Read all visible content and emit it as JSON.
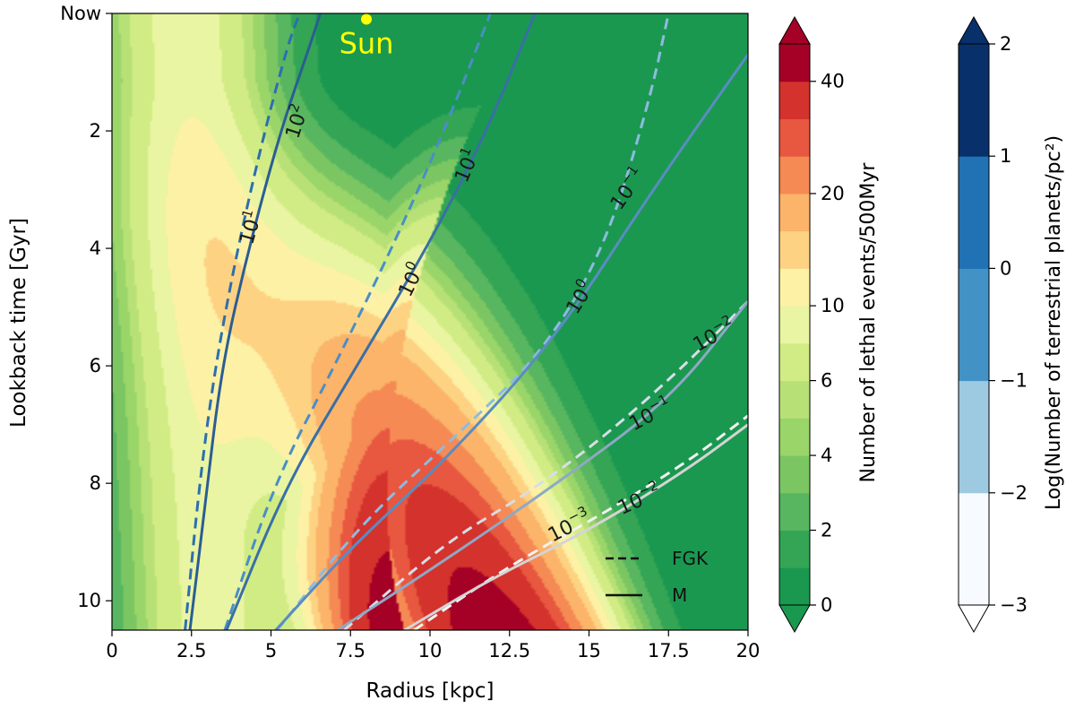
{
  "chart_data": {
    "type": "contour",
    "xlabel": "Radius [kpc]",
    "ylabel": "Lookback time [Gyr]",
    "xlim": [
      0,
      20
    ],
    "ylim": [
      10.5,
      0
    ],
    "x_ticks": [
      {
        "value": 0,
        "label": "0"
      },
      {
        "value": 2.5,
        "label": "2.5"
      },
      {
        "value": 5,
        "label": "5"
      },
      {
        "value": 7.5,
        "label": "7.5"
      },
      {
        "value": 10,
        "label": "10"
      },
      {
        "value": 12.5,
        "label": "12.5"
      },
      {
        "value": 15,
        "label": "15"
      },
      {
        "value": 17.5,
        "label": "17.5"
      },
      {
        "value": 20,
        "label": "20"
      }
    ],
    "y_ticks": [
      {
        "value": 0,
        "label": "Now"
      },
      {
        "value": 2,
        "label": "2"
      },
      {
        "value": 4,
        "label": "4"
      },
      {
        "value": 6,
        "label": "6"
      },
      {
        "value": 8,
        "label": "8"
      },
      {
        "value": 10,
        "label": "10"
      }
    ],
    "sun": {
      "label": "Sun",
      "radius": 8.0,
      "time": 0.1,
      "color": "#ffff00"
    },
    "lethal_colorbar": {
      "label": "Number of lethal events/500Myr",
      "levels": [
        0,
        1,
        2,
        3,
        4,
        5,
        6,
        8,
        10,
        12.5,
        15,
        20,
        25,
        30,
        40
      ],
      "colors": [
        "#1a9850",
        "#33a554",
        "#57b65f",
        "#7bc663",
        "#9ad56a",
        "#b7e176",
        "#d1ec84",
        "#e9f5a2",
        "#fdf1a6",
        "#fdd383",
        "#fbb469",
        "#f58a54",
        "#e8573f",
        "#d4322c",
        "#a50026"
      ],
      "over_color": "#a50026",
      "under_color": "#1a9850",
      "ticks": [
        {
          "value": 0,
          "label": "0"
        },
        {
          "value": 2,
          "label": "2"
        },
        {
          "value": 4,
          "label": "4"
        },
        {
          "value": 6,
          "label": "6"
        },
        {
          "value": 10,
          "label": "10"
        },
        {
          "value": 20,
          "label": "20"
        },
        {
          "value": 40,
          "label": "40"
        }
      ]
    },
    "planet_colorbar": {
      "label": "Log(Number of terrestrial planets/pc²)",
      "levels": [
        -3,
        -2,
        -1,
        0,
        1,
        2
      ],
      "colors": [
        "#f7fbff",
        "#9ecae1",
        "#4292c6",
        "#2171b5",
        "#08306b"
      ],
      "over_color": "#08306b",
      "under_color": "#ffffff",
      "ticks": [
        {
          "value": -3,
          "label": "−3"
        },
        {
          "value": -2,
          "label": "−2"
        },
        {
          "value": -1,
          "label": "−1"
        },
        {
          "value": 0,
          "label": "0"
        },
        {
          "value": 1,
          "label": "1"
        },
        {
          "value": 2,
          "label": "2"
        }
      ]
    },
    "legend": {
      "position": "lower-right",
      "entries": [
        {
          "label": "FGK",
          "style": "dashed"
        },
        {
          "label": "M",
          "style": "solid"
        }
      ]
    },
    "planet_contours": [
      {
        "name": "fgk-10^2",
        "style": "dashed",
        "color": "#2c6fae",
        "points": [
          [
            2.3,
            10.5
          ],
          [
            2.75,
            8.0
          ],
          [
            3.25,
            6.0
          ],
          [
            3.95,
            4.0
          ],
          [
            4.8,
            2.0
          ],
          [
            5.55,
            0.5
          ],
          [
            5.9,
            0
          ]
        ]
      },
      {
        "name": "m-10^2",
        "style": "solid",
        "color": "#2b5d94",
        "points": [
          [
            2.45,
            10.5
          ],
          [
            2.9,
            8.5
          ],
          [
            3.45,
            6.0
          ],
          [
            4.3,
            4.0
          ],
          [
            5.3,
            2.0
          ],
          [
            6.25,
            0.5
          ],
          [
            6.55,
            0
          ]
        ]
      },
      {
        "name": "fgk-10^0",
        "style": "dashed",
        "color": "#4a8ec6",
        "points": [
          [
            3.55,
            10.5
          ],
          [
            5.1,
            8.0
          ],
          [
            7.0,
            6.0
          ],
          [
            8.8,
            4.0
          ],
          [
            10.45,
            2.0
          ],
          [
            11.9,
            0
          ]
        ]
      },
      {
        "name": "m-10^0",
        "style": "solid",
        "color": "#3a6fa6",
        "points": [
          [
            3.6,
            10.5
          ],
          [
            5.5,
            8.0
          ],
          [
            7.7,
            6.0
          ],
          [
            9.9,
            4.0
          ],
          [
            11.8,
            2.0
          ],
          [
            13.3,
            0
          ]
        ]
      },
      {
        "name": "fgk-10^-1",
        "style": "dashed",
        "color": "#8dbbe0",
        "points": [
          [
            5.2,
            10.5
          ],
          [
            7.8,
            8.7
          ],
          [
            11.0,
            7.1
          ],
          [
            13.5,
            5.8
          ],
          [
            15.5,
            4.0
          ],
          [
            16.9,
            1.5
          ],
          [
            17.5,
            0
          ]
        ]
      },
      {
        "name": "m-10^-1",
        "style": "solid",
        "color": "#5a8cc0",
        "points": [
          [
            5.15,
            10.5
          ],
          [
            7.5,
            9.1
          ],
          [
            10.5,
            7.6
          ],
          [
            14.0,
            5.5
          ],
          [
            17.0,
            3.0
          ],
          [
            20.0,
            0.7
          ]
        ]
      },
      {
        "name": "fgk-10^-2",
        "style": "dashed",
        "color": "#d8dde6",
        "points": [
          [
            7.3,
            10.5
          ],
          [
            10.5,
            9.0
          ],
          [
            13.0,
            8.2
          ],
          [
            15.5,
            7.2
          ],
          [
            18.0,
            6.0
          ],
          [
            20.0,
            4.9
          ]
        ]
      },
      {
        "name": "m-10^-2",
        "style": "solid",
        "color": "#8fa8c4",
        "points": [
          [
            7.1,
            10.5
          ],
          [
            10.5,
            9.3
          ],
          [
            14.0,
            8.0
          ],
          [
            17.5,
            6.6
          ],
          [
            20.0,
            4.9
          ]
        ]
      },
      {
        "name": "fgk-10^-3",
        "style": "dashed",
        "color": "#f2f2f2",
        "points": [
          [
            9.5,
            10.5
          ],
          [
            12.5,
            9.4
          ],
          [
            15.5,
            8.5
          ],
          [
            18.2,
            7.6
          ],
          [
            20.0,
            6.85
          ]
        ]
      },
      {
        "name": "m-10^-3",
        "style": "solid",
        "color": "#d4d4d4",
        "points": [
          [
            9.2,
            10.5
          ],
          [
            12.0,
            9.6
          ],
          [
            15.0,
            8.8
          ],
          [
            18.0,
            7.8
          ],
          [
            20.0,
            7.0
          ]
        ]
      }
    ],
    "contour_labels": [
      {
        "text": "10",
        "exp": "2",
        "radius": 5.85,
        "time": 1.85,
        "rotation": -72
      },
      {
        "text": "10",
        "exp": "1",
        "radius": 4.4,
        "time": 3.65,
        "rotation": -74
      },
      {
        "text": "10",
        "exp": "1",
        "radius": 11.2,
        "time": 2.6,
        "rotation": -67
      },
      {
        "text": "10",
        "exp": "0",
        "radius": 9.45,
        "time": 4.55,
        "rotation": -64
      },
      {
        "text": "10",
        "exp": "0",
        "radius": 14.75,
        "time": 4.85,
        "rotation": -58
      },
      {
        "text": "10",
        "exp": "−1",
        "radius": 16.25,
        "time": 3.0,
        "rotation": -55
      },
      {
        "text": "10",
        "exp": "−2",
        "radius": 18.95,
        "time": 5.5,
        "rotation": -29
      },
      {
        "text": "10",
        "exp": "−1",
        "radius": 16.95,
        "time": 6.85,
        "rotation": -28
      },
      {
        "text": "10",
        "exp": "−2",
        "radius": 16.6,
        "time": 8.3,
        "rotation": -24
      },
      {
        "text": "10",
        "exp": "−3",
        "radius": 14.4,
        "time": 8.75,
        "rotation": -27
      }
    ]
  }
}
